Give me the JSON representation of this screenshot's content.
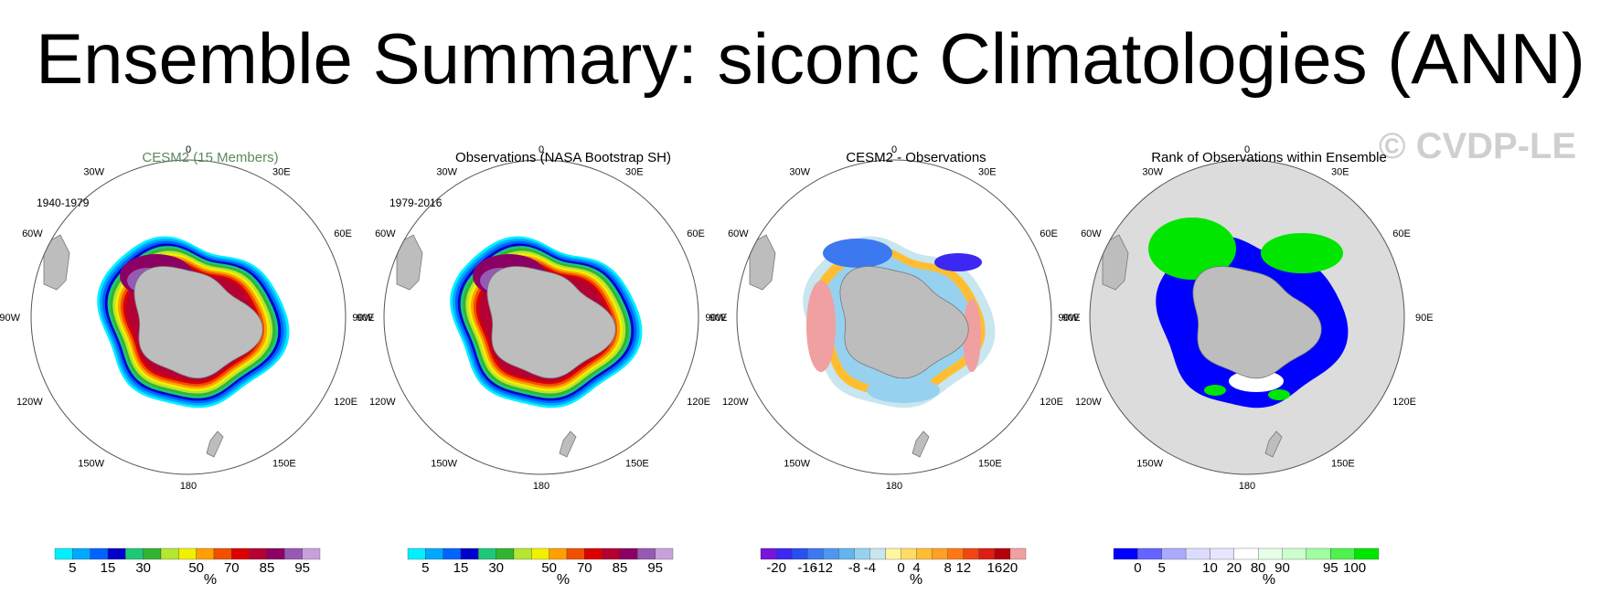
{
  "title": "Ensemble Summary: siconc Climatologies (ANN)",
  "watermark": "© CVDP-LE",
  "longitude_labels": [
    "0",
    "30E",
    "60E",
    "90E",
    "120E",
    "150E",
    "180",
    "150W",
    "120W",
    "90W",
    "60W",
    "30W"
  ],
  "colors": {
    "land": "#bdbdbd",
    "ocean_rank": "#dcdcdc",
    "title_cesm": "#5a8a5a"
  },
  "chart_data": [
    {
      "type": "heatmap",
      "projection": "south polar stereographic",
      "title": "CESM2 (15 Members)",
      "period": "1940-1979",
      "units": "%",
      "colorbar": {
        "colors": [
          "#00f0ff",
          "#00a8ff",
          "#0064ff",
          "#0000cd",
          "#1ec878",
          "#32b432",
          "#b4e632",
          "#f0f000",
          "#ffa000",
          "#f05000",
          "#dc0000",
          "#b40032",
          "#8c0064",
          "#965ab4",
          "#c8a0dc"
        ],
        "tick_labels": [
          "5",
          "15",
          "30",
          "50",
          "70",
          "85",
          "95"
        ]
      }
    },
    {
      "type": "heatmap",
      "projection": "south polar stereographic",
      "title": "Observations (NASA Bootstrap SH)",
      "period": "1979-2016",
      "units": "%",
      "colorbar": {
        "colors": [
          "#00f0ff",
          "#00a8ff",
          "#0064ff",
          "#0000cd",
          "#1ec878",
          "#32b432",
          "#b4e632",
          "#f0f000",
          "#ffa000",
          "#f05000",
          "#dc0000",
          "#b40032",
          "#8c0064",
          "#965ab4",
          "#c8a0dc"
        ],
        "tick_labels": [
          "5",
          "15",
          "30",
          "50",
          "70",
          "85",
          "95"
        ]
      }
    },
    {
      "type": "heatmap",
      "projection": "south polar stereographic",
      "title": "CESM2 - Observations",
      "period": "",
      "units": "%",
      "colorbar": {
        "colors": [
          "#7814dc",
          "#3c28f0",
          "#2850f0",
          "#3c78f0",
          "#5096f0",
          "#64b4f0",
          "#96d2f0",
          "#c8e6f0",
          "#fff5a0",
          "#ffdc64",
          "#ffbe32",
          "#ffa028",
          "#ff7814",
          "#f04614",
          "#dc1e14",
          "#b4000a",
          "#f0a0a0"
        ],
        "tick_labels": [
          "-20",
          "-16",
          "-12",
          "-8",
          "-4",
          "0",
          "4",
          "8",
          "12",
          "16",
          "20"
        ]
      }
    },
    {
      "type": "heatmap",
      "projection": "south polar stereographic",
      "title": "Rank of Observations within Ensemble",
      "period": "",
      "units": "%",
      "colorbar": {
        "colors": [
          "#0000ff",
          "#6464ff",
          "#aaaaff",
          "#dcdcff",
          "#e6e6ff",
          "#ffffff",
          "#e6ffe6",
          "#ccffcc",
          "#a0ffa0",
          "#50f050",
          "#00e600"
        ],
        "tick_labels": [
          "0",
          "5",
          "10",
          "20",
          "80",
          "90",
          "95",
          "100"
        ]
      }
    }
  ]
}
